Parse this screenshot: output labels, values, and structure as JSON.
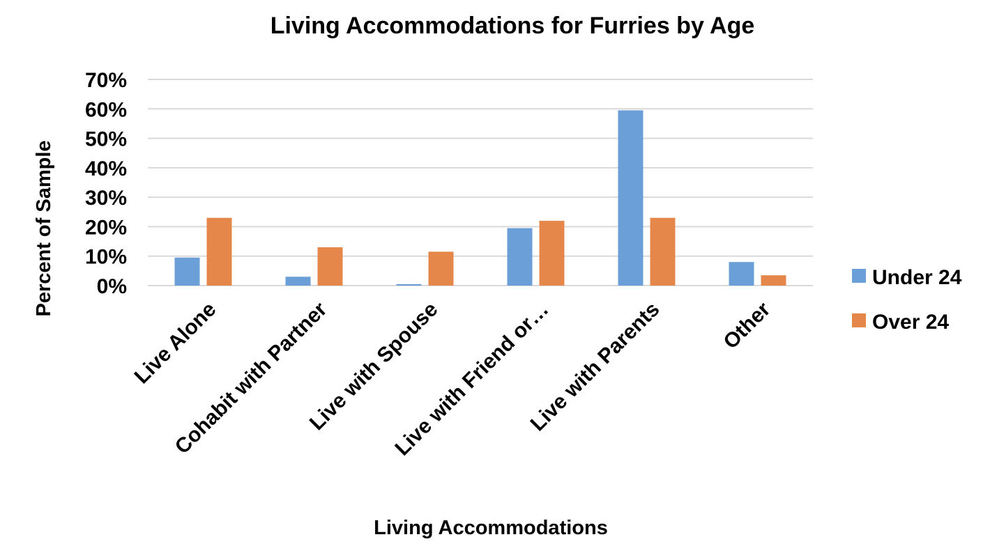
{
  "chart_data": {
    "type": "bar",
    "title": "Living Accommodations for Furries by Age",
    "xlabel": "Living Accommodations",
    "ylabel": "Percent of Sample",
    "categories": [
      "Live Alone",
      "Cohabit with Partner",
      "Live with Spouse",
      "Live with Friend or…",
      "Live with Parents",
      "Other"
    ],
    "series": [
      {
        "name": "Under 24",
        "color": "#6a9fd7",
        "values": [
          9.5,
          3,
          0.5,
          19.5,
          59.5,
          8
        ]
      },
      {
        "name": "Over 24",
        "color": "#e5874a",
        "values": [
          23,
          13,
          11.5,
          22,
          23,
          3.5
        ]
      }
    ],
    "ylim": [
      0,
      70
    ],
    "yticks": [
      0,
      10,
      20,
      30,
      40,
      50,
      60,
      70
    ],
    "ytick_labels": [
      "0%",
      "10%",
      "20%",
      "30%",
      "40%",
      "50%",
      "60%",
      "70%"
    ],
    "grid": true,
    "legend_position": "right"
  }
}
